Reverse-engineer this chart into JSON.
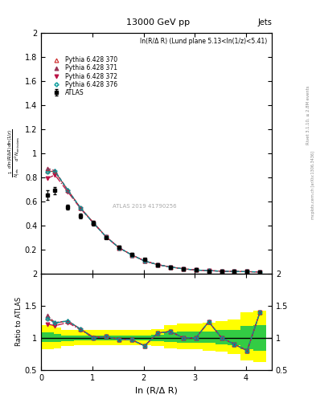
{
  "title": "13000 GeV pp",
  "title_right": "Jets",
  "annotation": "ln(R/Δ R) (Lund plane 5.13<ln(1/z)<5.41)",
  "watermark": "ATLAS 2019 41790256",
  "xlabel": "ln (R/Δ R)",
  "right_label": "Rivet 3.1.10, ≥ 2.8M events",
  "right_label2": "mcplots.cern.ch [arXiv:1306.3436]",
  "ylim_main": [
    0.0,
    2.0
  ],
  "ylim_ratio": [
    0.5,
    2.0
  ],
  "xlim": [
    0.0,
    4.5
  ],
  "x_atlas": [
    0.12,
    0.27,
    0.52,
    0.77,
    1.02,
    1.27,
    1.52,
    1.77,
    2.02,
    2.27,
    2.52,
    2.77,
    3.02,
    3.27,
    3.52,
    3.77,
    4.02,
    4.27
  ],
  "y_atlas": [
    0.65,
    0.69,
    0.55,
    0.48,
    0.42,
    0.3,
    0.22,
    0.16,
    0.12,
    0.07,
    0.05,
    0.04,
    0.03,
    0.02,
    0.02,
    0.02,
    0.02,
    0.01
  ],
  "y_atlas_err": [
    0.04,
    0.03,
    0.02,
    0.02,
    0.02,
    0.01,
    0.01,
    0.01,
    0.005,
    0.003,
    0.002,
    0.002,
    0.001,
    0.001,
    0.001,
    0.001,
    0.001,
    0.001
  ],
  "x_py370": [
    0.12,
    0.27,
    0.52,
    0.77,
    1.02,
    1.27,
    1.52,
    1.77,
    2.02,
    2.27,
    2.52,
    2.77,
    3.02,
    3.27,
    3.52,
    3.77,
    4.02,
    4.27
  ],
  "y_py370": [
    0.855,
    0.845,
    0.695,
    0.545,
    0.425,
    0.305,
    0.215,
    0.155,
    0.105,
    0.075,
    0.055,
    0.04,
    0.03,
    0.025,
    0.02,
    0.018,
    0.016,
    0.014
  ],
  "x_py371": [
    0.12,
    0.27,
    0.52,
    0.77,
    1.02,
    1.27,
    1.52,
    1.77,
    2.02,
    2.27,
    2.52,
    2.77,
    3.02,
    3.27,
    3.52,
    3.77,
    4.02,
    4.27
  ],
  "y_py371": [
    0.875,
    0.855,
    0.695,
    0.545,
    0.42,
    0.305,
    0.215,
    0.155,
    0.105,
    0.075,
    0.055,
    0.04,
    0.03,
    0.025,
    0.02,
    0.018,
    0.016,
    0.014
  ],
  "x_py372": [
    0.12,
    0.27,
    0.52,
    0.77,
    1.02,
    1.27,
    1.52,
    1.77,
    2.02,
    2.27,
    2.52,
    2.77,
    3.02,
    3.27,
    3.52,
    3.77,
    4.02,
    4.27
  ],
  "y_py372": [
    0.79,
    0.82,
    0.68,
    0.54,
    0.42,
    0.305,
    0.215,
    0.155,
    0.105,
    0.075,
    0.055,
    0.04,
    0.03,
    0.025,
    0.02,
    0.018,
    0.016,
    0.014
  ],
  "x_py376": [
    0.12,
    0.27,
    0.52,
    0.77,
    1.02,
    1.27,
    1.52,
    1.77,
    2.02,
    2.27,
    2.52,
    2.77,
    3.02,
    3.27,
    3.52,
    3.77,
    4.02,
    4.27
  ],
  "y_py376": [
    0.845,
    0.85,
    0.695,
    0.545,
    0.42,
    0.305,
    0.215,
    0.155,
    0.105,
    0.075,
    0.055,
    0.04,
    0.03,
    0.025,
    0.02,
    0.018,
    0.016,
    0.014
  ],
  "color_py370": "#cc2222",
  "color_py371": "#993355",
  "color_py372": "#bb1144",
  "color_py376": "#009999",
  "color_atlas": "#000000",
  "green_band_lo": [
    0.93,
    0.93,
    0.95,
    0.96,
    0.96,
    0.96,
    0.96,
    0.96,
    0.96,
    0.95,
    0.93,
    0.92,
    0.92,
    0.92,
    0.9,
    0.88,
    0.82,
    0.8
  ],
  "green_band_hi": [
    1.08,
    1.06,
    1.04,
    1.04,
    1.04,
    1.04,
    1.04,
    1.04,
    1.04,
    1.05,
    1.08,
    1.1,
    1.1,
    1.1,
    1.12,
    1.12,
    1.18,
    1.2
  ],
  "yellow_band_lo": [
    0.82,
    0.83,
    0.87,
    0.88,
    0.88,
    0.88,
    0.88,
    0.88,
    0.88,
    0.87,
    0.83,
    0.82,
    0.82,
    0.8,
    0.78,
    0.75,
    0.65,
    0.62
  ],
  "yellow_band_hi": [
    1.2,
    1.16,
    1.12,
    1.12,
    1.12,
    1.12,
    1.12,
    1.12,
    1.12,
    1.14,
    1.2,
    1.22,
    1.22,
    1.24,
    1.26,
    1.28,
    1.4,
    1.42
  ]
}
